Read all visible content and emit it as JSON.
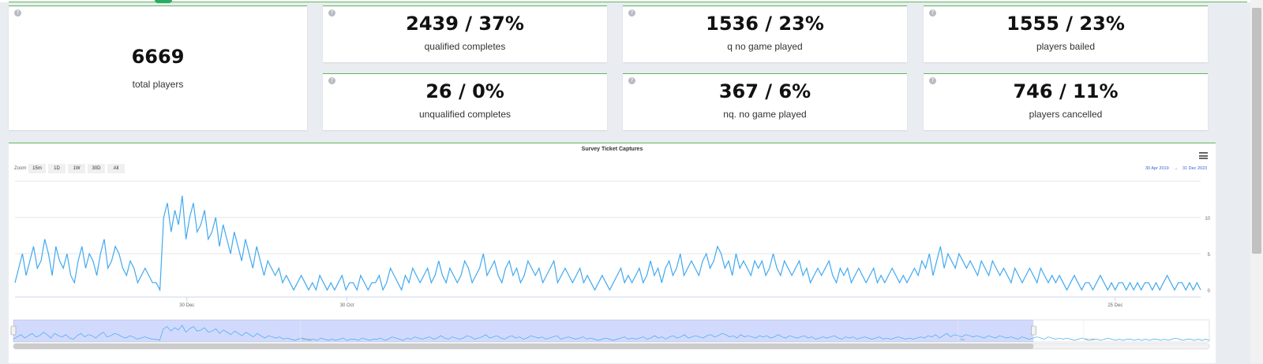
{
  "stats": {
    "total": {
      "value": "6669",
      "label": "total players"
    },
    "tiles": [
      {
        "value": "2439 / 37%",
        "label": "qualified completes"
      },
      {
        "value": "1536 / 23%",
        "label": "q no game played"
      },
      {
        "value": "1555 / 23%",
        "label": "players bailed"
      },
      {
        "value": "26 / 0%",
        "label": "unqualified completes"
      },
      {
        "value": "367 / 6%",
        "label": "nq. no game played"
      },
      {
        "value": "746 / 11%",
        "label": "players cancelled"
      }
    ],
    "help_glyph": "?"
  },
  "chart": {
    "title": "Survey Ticket Captures",
    "zoom_label": "Zoom",
    "zoom_buttons": [
      "15m",
      "1D",
      "1W",
      "30D",
      "All"
    ],
    "range_from": "30 Apr 2019",
    "range_arrow": "→",
    "range_to": "31 Dec 2023",
    "menu_icon": "hamburger-menu-icon"
  },
  "chart_data": {
    "type": "line",
    "title": "Survey Ticket Captures",
    "x_tick_labels": [
      "30 Dec",
      "30 Oct",
      "25 Dec"
    ],
    "y_tick_labels": [
      "0",
      "5",
      "10"
    ],
    "ylim": [
      0,
      15
    ],
    "series": [
      {
        "color": "#41a9f0",
        "values": [
          1,
          3,
          5,
          2,
          4,
          6,
          3,
          4,
          7,
          5,
          2,
          6,
          4,
          3,
          5,
          2,
          1,
          4,
          6,
          3,
          5,
          4,
          2,
          5,
          7,
          3,
          4,
          6,
          5,
          3,
          2,
          4,
          3,
          1,
          2,
          3,
          2,
          1,
          1,
          0,
          10,
          12,
          8,
          11,
          9,
          13,
          7,
          10,
          12,
          8,
          9,
          11,
          7,
          8,
          10,
          6,
          9,
          7,
          5,
          8,
          6,
          4,
          7,
          5,
          3,
          6,
          4,
          2,
          4,
          3,
          2,
          3,
          1,
          2,
          1,
          0,
          1,
          2,
          1,
          0,
          1,
          0,
          2,
          1,
          0,
          1,
          0,
          1,
          2,
          0,
          1,
          1,
          0,
          2,
          1,
          0,
          1,
          1,
          2,
          0,
          1,
          3,
          2,
          1,
          0,
          2,
          1,
          3,
          2,
          1,
          2,
          3,
          1,
          2,
          4,
          2,
          1,
          3,
          2,
          1,
          2,
          4,
          3,
          1,
          2,
          3,
          5,
          2,
          3,
          4,
          2,
          1,
          3,
          4,
          2,
          3,
          1,
          2,
          4,
          3,
          2,
          3,
          1,
          2,
          3,
          4,
          1,
          2,
          3,
          2,
          1,
          2,
          3,
          1,
          2,
          1,
          0,
          1,
          2,
          1,
          0,
          1,
          2,
          3,
          1,
          2,
          1,
          2,
          3,
          1,
          2,
          4,
          2,
          3,
          1,
          3,
          4,
          2,
          3,
          5,
          2,
          3,
          4,
          3,
          2,
          4,
          5,
          3,
          4,
          6,
          5,
          3,
          4,
          2,
          5,
          3,
          4,
          3,
          2,
          4,
          3,
          4,
          2,
          3,
          5,
          3,
          2,
          4,
          3,
          2,
          3,
          4,
          2,
          3,
          1,
          2,
          3,
          2,
          3,
          4,
          2,
          1,
          3,
          2,
          3,
          1,
          2,
          3,
          2,
          1,
          2,
          3,
          1,
          2,
          1,
          2,
          3,
          2,
          1,
          2,
          1,
          2,
          3,
          2,
          4,
          3,
          5,
          2,
          4,
          6,
          3,
          5,
          4,
          3,
          5,
          4,
          3,
          4,
          3,
          2,
          4,
          3,
          2,
          4,
          3,
          2,
          3,
          2,
          1,
          3,
          2,
          1,
          2,
          3,
          2,
          1,
          3,
          2,
          1,
          2,
          1,
          2,
          1,
          0,
          1,
          2,
          1,
          0,
          1,
          1,
          0,
          1,
          2,
          1,
          0,
          1,
          0,
          1,
          1,
          0,
          1,
          0,
          1,
          0,
          1,
          1,
          0,
          1,
          0,
          1,
          2,
          1,
          0,
          1,
          1,
          0,
          1,
          0,
          1,
          0
        ]
      }
    ],
    "navigator_tick_labels": [
      "30 Oct",
      "Jan",
      "01 Jan"
    ],
    "navigator_selection": [
      0,
      0.853
    ]
  }
}
